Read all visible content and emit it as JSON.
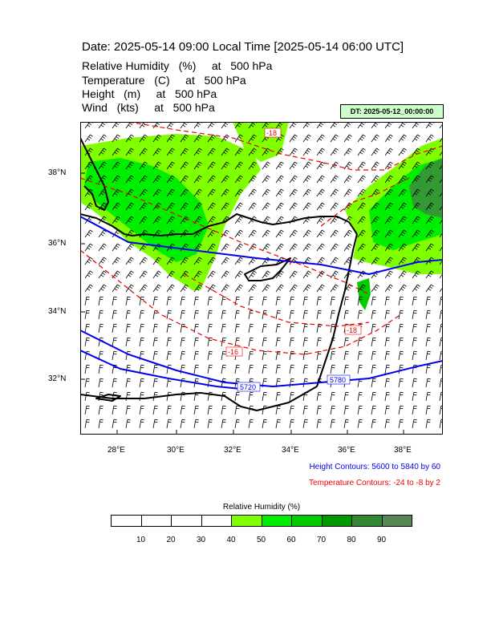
{
  "title": "Date: 2025-05-14  09:00 Local Time [2025-05-14  06:00 UTC]",
  "variables": [
    {
      "name": "Relative Humidity",
      "unit": "(%)",
      "at": "at",
      "level": "500 hPa"
    },
    {
      "name": "Temperature",
      "unit": "(C)",
      "at": "at",
      "level": "500 hPa"
    },
    {
      "name": "Height",
      "unit": "(m)",
      "at": "at",
      "level": "500 hPa"
    },
    {
      "name": "Wind",
      "unit": "(kts)",
      "at": "at",
      "level": "500 hPa"
    }
  ],
  "dt_badge": "DT: 2025-05-12_00:00:00",
  "lat_labels": [
    "38°N",
    "36°N",
    "34°N",
    "32°N"
  ],
  "lon_labels": [
    "28°E",
    "30°E",
    "32°E",
    "34°E",
    "36°E",
    "38°E"
  ],
  "contour_labels": {
    "height": [
      "5720",
      "5780"
    ],
    "temperature": [
      "-16",
      "-18",
      "-18"
    ]
  },
  "legend": {
    "height": {
      "text": "Height Contours: 5600 to 5840 by 60",
      "color": "#0000ee"
    },
    "temperature": {
      "text": "Temperature Contours: -24 to -8 by 2",
      "color": "#ee0000"
    }
  },
  "colorbar": {
    "title": "Relative Humidity  (%)",
    "labels": [
      "10",
      "20",
      "30",
      "40",
      "50",
      "60",
      "70",
      "80",
      "90"
    ],
    "colors": [
      "#ffffff",
      "#ffffff",
      "#ffffff",
      "#ffffff",
      "#80ff00",
      "#00ee00",
      "#00cc00",
      "#009900",
      "#338833",
      "#558855"
    ]
  },
  "colors": {
    "humidity_light": "#80ff00",
    "humidity_mid": "#00ee00",
    "humidity_dark": "#339933",
    "height_contour": "#0000ee",
    "temperature_contour": "#ee0000",
    "coast": "#000000"
  }
}
